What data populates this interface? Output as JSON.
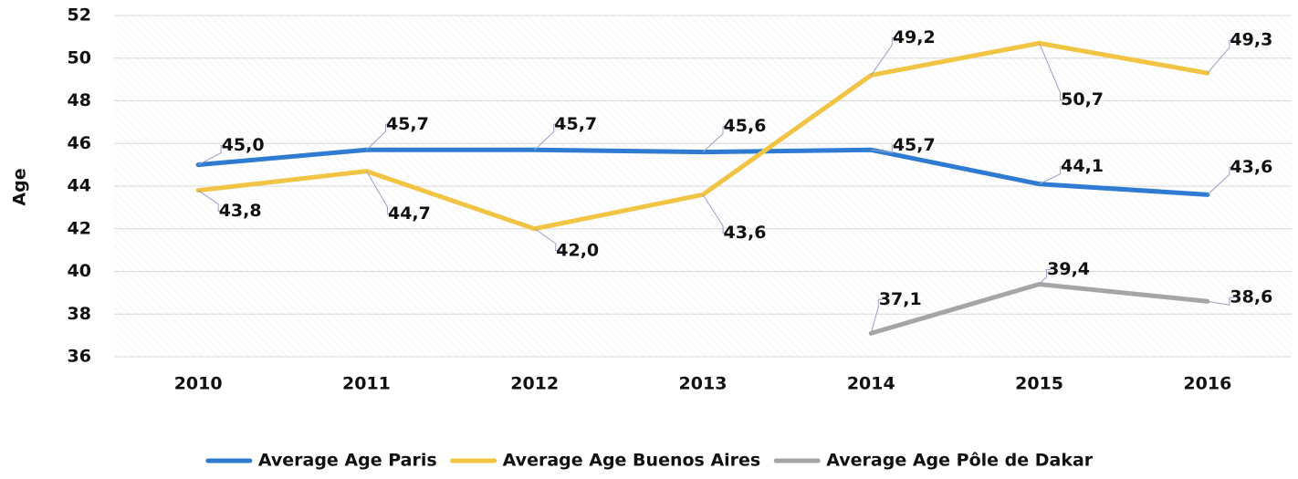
{
  "chart_data": {
    "type": "line",
    "y_label": "Age",
    "categories": [
      "2010",
      "2011",
      "2012",
      "2013",
      "2014",
      "2015",
      "2016"
    ],
    "series": [
      {
        "name": "Average Age Paris",
        "color": "#2e7bd1",
        "values": [
          45.0,
          45.7,
          45.7,
          45.6,
          45.7,
          44.1,
          43.6
        ],
        "value_labels": [
          "45,0",
          "45,7",
          "45,7",
          "45,6",
          "45,7",
          "44,1",
          "43,6"
        ]
      },
      {
        "name": "Average Age Buenos Aires",
        "color": "#f2c443",
        "values": [
          43.8,
          44.7,
          42.0,
          43.6,
          49.2,
          50.7,
          49.3
        ],
        "value_labels": [
          "43,8",
          "44,7",
          "42,0",
          "43,6",
          "49,2",
          "50,7",
          "49,3"
        ]
      },
      {
        "name": "Average Age Pôle de Dakar",
        "color": "#a5a5a5",
        "values": [
          null,
          null,
          null,
          null,
          37.1,
          39.4,
          38.6
        ],
        "value_labels": [
          null,
          null,
          null,
          null,
          "37,1",
          "39,4",
          "38,6"
        ]
      }
    ],
    "ylim": [
      36,
      52
    ],
    "yticks": [
      36,
      38,
      40,
      42,
      44,
      46,
      48,
      50,
      52
    ],
    "grid": true,
    "legend": "bottom"
  }
}
